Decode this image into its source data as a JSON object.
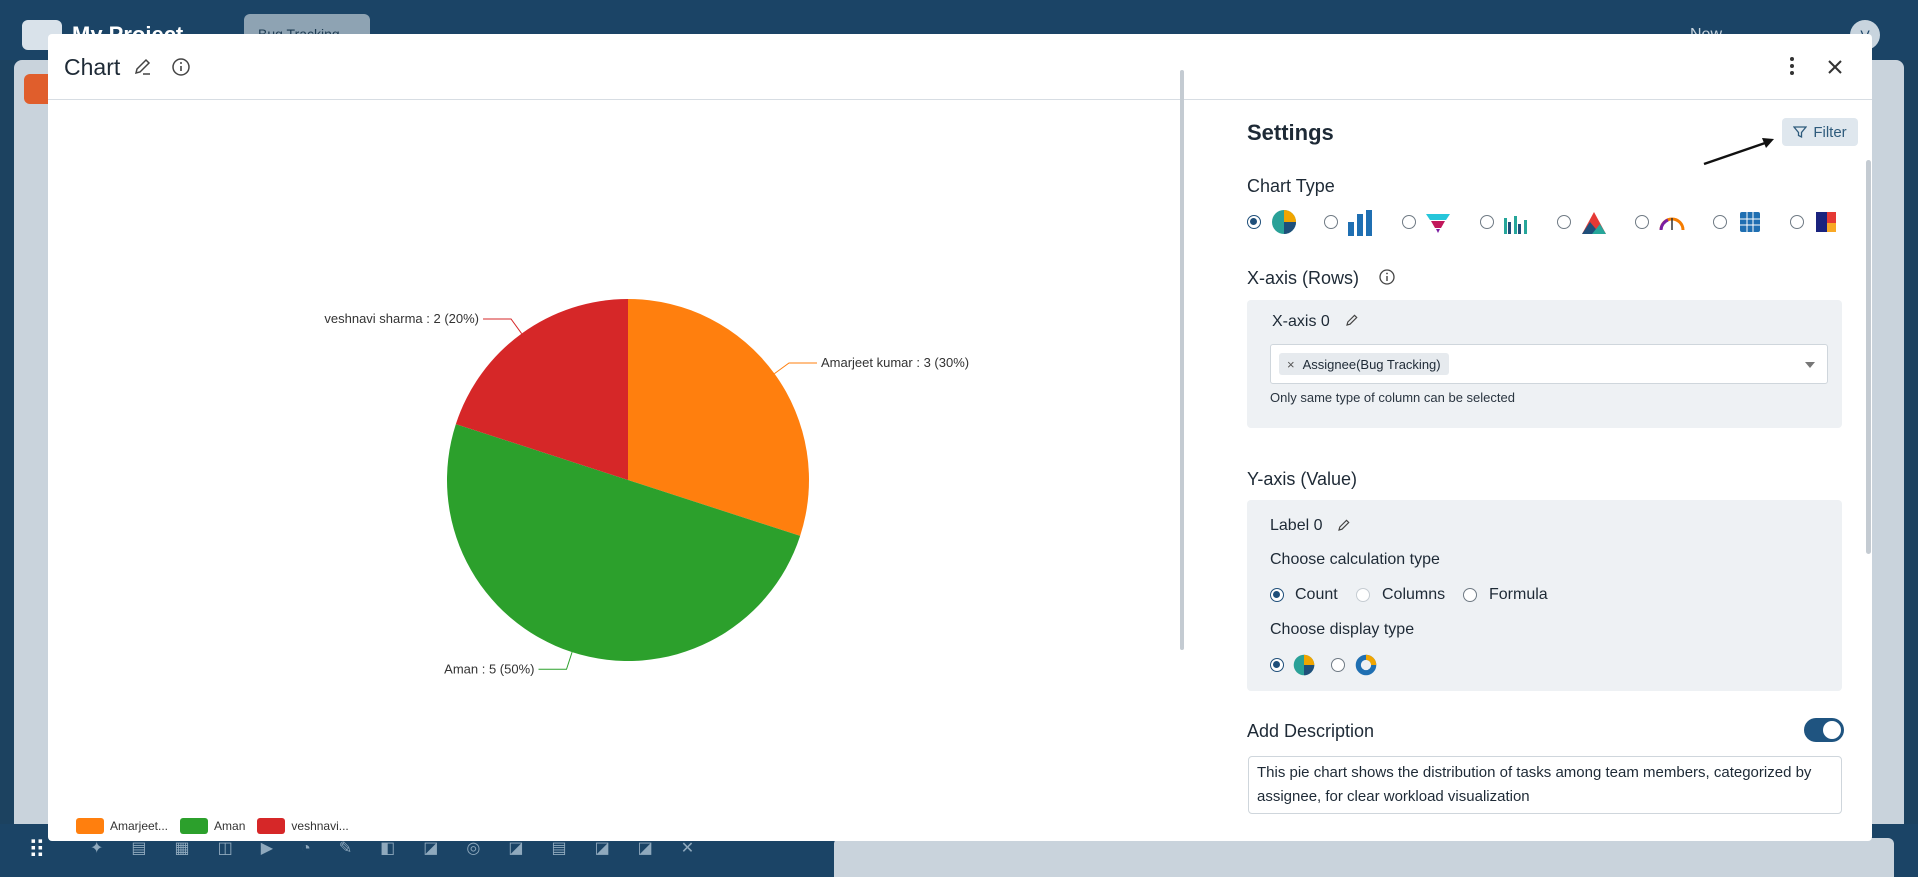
{
  "background": {
    "project_title": "My Project",
    "tab_label": "Bug Tracking",
    "new_label": "New",
    "avatar_initial": "V"
  },
  "modal": {
    "title": "Chart"
  },
  "chart_data": {
    "type": "pie",
    "categories": [
      "Amarjeet kumar",
      "Aman",
      "veshnavi sharma"
    ],
    "values": [
      3,
      5,
      2
    ],
    "percentages": [
      30,
      50,
      20
    ],
    "colors": [
      "#ff7f0e",
      "#2ca02c",
      "#d62728"
    ],
    "slice_labels": [
      "Amarjeet kumar : 3 (30%)",
      "Aman : 5 (50%)",
      "veshnavi sharma : 2 (20%)"
    ],
    "legend": [
      "Amarjeet...",
      "Aman",
      "veshnavi..."
    ],
    "legend_position": "bottom-left"
  },
  "settings": {
    "title": "Settings",
    "filter_label": "Filter",
    "chart_type_label": "Chart Type",
    "chart_types": [
      "pie",
      "bar",
      "funnel",
      "grouped-bar",
      "area",
      "gauge",
      "table",
      "treemap"
    ],
    "selected_chart_type": "pie",
    "x_axis_label": "X-axis (Rows)",
    "x_axis_item_label": "X-axis 0",
    "x_axis_selected": "Assignee(Bug Tracking)",
    "x_axis_hint": "Only same type of column can be selected",
    "y_axis_label": "Y-axis (Value)",
    "y_axis_item_label": "Label 0",
    "calc_type_label": "Choose calculation type",
    "calc_options": [
      "Count",
      "Columns",
      "Formula"
    ],
    "calc_selected": "Count",
    "display_type_label": "Choose display type",
    "add_description_label": "Add Description",
    "description_enabled": true,
    "description_text": "This pie chart shows the distribution of tasks among team members, categorized by assignee, for clear workload visualization"
  }
}
